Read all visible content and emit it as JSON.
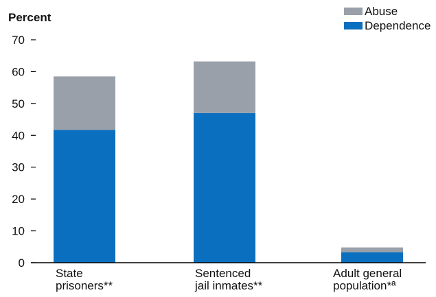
{
  "chart_data": {
    "type": "bar",
    "stacked": true,
    "ylabel": "Percent",
    "ylim": [
      0,
      70
    ],
    "yticks": [
      0,
      10,
      20,
      30,
      40,
      50,
      60,
      70
    ],
    "categories": [
      [
        "State",
        "prisoners**"
      ],
      [
        "Sentenced",
        "jail inmates**"
      ],
      [
        "Adult general",
        "population*ª"
      ]
    ],
    "series": [
      {
        "name": "Dependence",
        "color": "#0a6fbf",
        "values": [
          41.7,
          47.0,
          3.3
        ]
      },
      {
        "name": "Abuse",
        "color": "#9aa0aa",
        "values": [
          16.8,
          16.2,
          1.5
        ]
      }
    ],
    "legend": {
      "position": "top-right",
      "order": [
        "Abuse",
        "Dependence"
      ]
    },
    "grid": false
  }
}
